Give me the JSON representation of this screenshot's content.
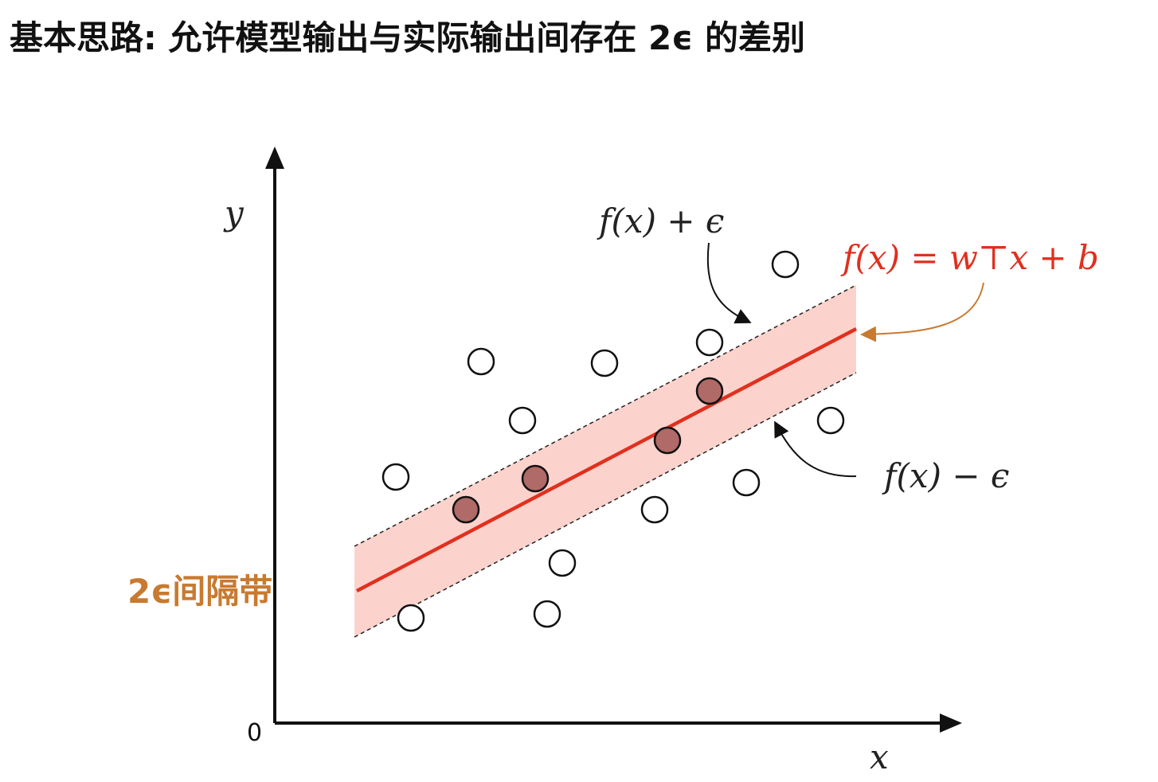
{
  "header": {
    "title": "基本思路: 允许模型输出与实际输出间存在 2ϵ 的差别"
  },
  "axes": {
    "y_label": "y",
    "x_label": "x",
    "origin": "0"
  },
  "annotations": {
    "upper": "f(x) + ϵ",
    "model": "f(x) = w⊤x + b",
    "lower": "f(x) − ϵ",
    "band": "2ϵ间隔带"
  }
}
